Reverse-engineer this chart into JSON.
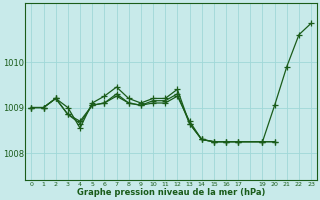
{
  "background_color": "#c8eaea",
  "plot_bg_color": "#c8eaea",
  "grid_color": "#a0d8d8",
  "line_color": "#1a5c1a",
  "marker_color": "#1a5c1a",
  "xlabel": "Graphe pression niveau de la mer (hPa)",
  "yticks": [
    1008,
    1009,
    1010
  ],
  "ylim": [
    1007.4,
    1011.3
  ],
  "xlim": [
    -0.5,
    23.5
  ],
  "xticks": [
    0,
    1,
    2,
    3,
    4,
    5,
    6,
    7,
    8,
    9,
    10,
    11,
    12,
    13,
    14,
    15,
    16,
    17,
    19,
    20,
    21,
    22,
    23
  ],
  "series": [
    {
      "x": [
        0,
        1,
        2,
        3,
        4,
        5,
        6,
        7,
        8,
        9,
        10,
        11,
        12,
        13,
        14,
        15,
        16,
        17,
        19,
        20,
        21,
        22,
        23
      ],
      "y": [
        1009.0,
        1009.0,
        1009.2,
        1008.85,
        1008.65,
        1009.05,
        1009.1,
        1009.25,
        1009.1,
        1009.05,
        1009.1,
        1009.1,
        1009.25,
        1008.7,
        1008.3,
        1008.25,
        1008.25,
        1008.25,
        1008.25,
        1008.25,
        null,
        null,
        null
      ]
    },
    {
      "x": [
        0,
        1,
        2,
        3,
        4,
        5,
        6,
        7,
        8,
        9,
        10,
        11,
        12,
        13,
        14,
        15,
        16,
        17,
        19,
        20,
        21,
        22,
        23
      ],
      "y": [
        1009.0,
        1009.0,
        1009.2,
        1009.0,
        1008.55,
        1009.1,
        1009.25,
        1009.45,
        1009.2,
        1009.1,
        1009.2,
        1009.2,
        1009.4,
        1008.65,
        1008.3,
        1008.25,
        1008.25,
        1008.25,
        1008.25,
        1009.05,
        1009.9,
        1010.6,
        1010.85
      ]
    },
    {
      "x": [
        0,
        1,
        2,
        3,
        4,
        5,
        6,
        7,
        8,
        9,
        10,
        11,
        12,
        13,
        14,
        15,
        16,
        17,
        19,
        20,
        21,
        22,
        23
      ],
      "y": [
        1009.0,
        1009.0,
        1009.2,
        1008.85,
        1008.7,
        1009.05,
        1009.1,
        1009.3,
        1009.1,
        1009.05,
        1009.15,
        1009.15,
        1009.3,
        1008.65,
        1008.3,
        1008.25,
        1008.25,
        1008.25,
        1008.25,
        1008.25,
        null,
        null,
        null
      ]
    }
  ]
}
